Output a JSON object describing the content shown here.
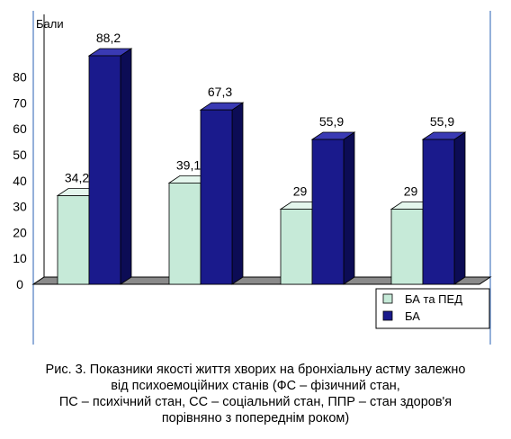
{
  "chart_data": {
    "type": "bar",
    "ylabel": "Бали",
    "ylim": [
      0,
      90
    ],
    "yticks": [
      0,
      10,
      20,
      30,
      40,
      50,
      60,
      70,
      80
    ],
    "grid": false,
    "legend_position": "bottom-right",
    "categories": [
      "",
      "",
      "",
      ""
    ],
    "series": [
      {
        "name": "БА та ПЕД",
        "color": "#c6ead8",
        "values": [
          34.2,
          39.1,
          29,
          29
        ],
        "labels": [
          "34,2",
          "39,1",
          "29",
          "29"
        ]
      },
      {
        "name": "БА",
        "color": "#1a1a8c",
        "values": [
          88.2,
          67.3,
          55.9,
          55.9
        ],
        "labels": [
          "88,2",
          "67,3",
          "55,9",
          "55,9"
        ]
      }
    ]
  },
  "caption": {
    "lines": [
      "Рис. 3. Показники якості життя хворих на бронхіальну астму залежно",
      "від психоемоційних станів (ФС – фізичний стан,",
      "ПС – психічний стан, СС – соціальний стан, ППР – стан здоров'я",
      "порівняно з попереднім роком)"
    ]
  }
}
